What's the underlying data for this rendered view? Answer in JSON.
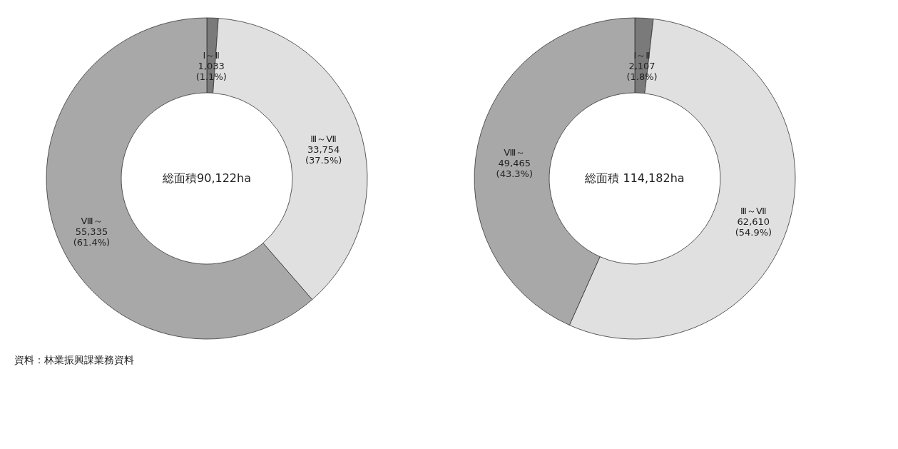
{
  "chart_data": [
    {
      "type": "donut",
      "title": "総面積90,122ha",
      "categories": [
        "Ⅰ～Ⅱ",
        "Ⅲ～Ⅶ",
        "Ⅷ～"
      ],
      "values": [
        1033,
        33754,
        55335
      ],
      "value_labels": [
        "1,033 (1.1%)",
        "33,754 (37.5%)",
        "55,335 (61.4%)"
      ],
      "colors": [
        "#7a7a7a",
        "#e0e0e0",
        "#a8a8a8"
      ],
      "annotations": [
        "資料：林業振興課業務資料"
      ],
      "legend": false
    },
    {
      "type": "donut",
      "title": "総面積 114,182ha",
      "categories": [
        "Ⅰ～Ⅱ",
        "Ⅲ～Ⅶ",
        "Ⅷ～"
      ],
      "values": [
        2107,
        62610,
        49465
      ],
      "value_labels": [
        "2,107 (1.8%)",
        "62,610 (54.9%)",
        "49,465 (43.3%)"
      ],
      "colors": [
        "#7a7a7a",
        "#e0e0e0",
        "#a8a8a8"
      ],
      "legend": false
    }
  ]
}
